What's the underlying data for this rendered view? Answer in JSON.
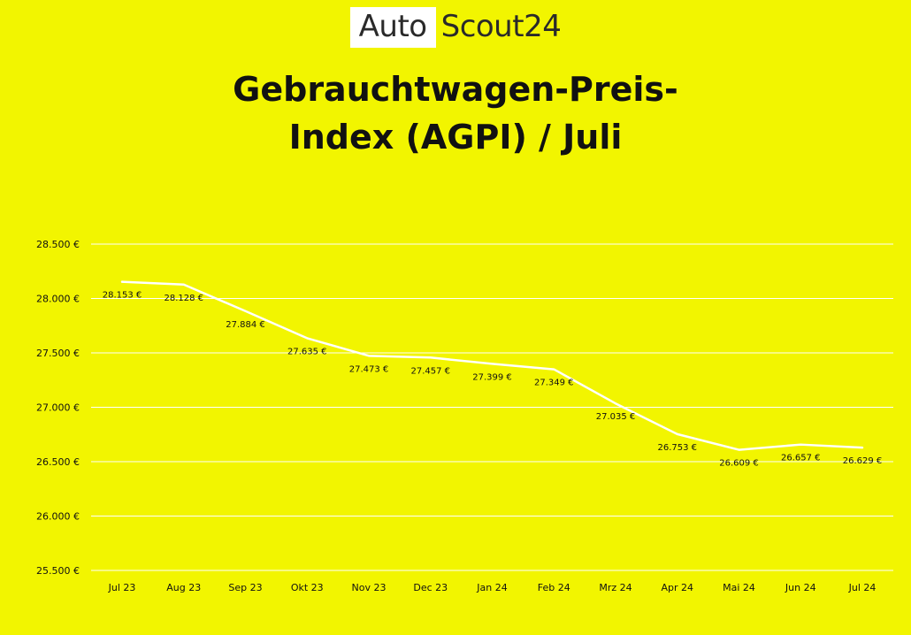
{
  "brand": {
    "part1": "Auto",
    "part2": "Scout24"
  },
  "title_line1": "Gebrauchtwagen-Preis-",
  "title_line2": "Index (AGPI) / Juli",
  "colors": {
    "background": "#f2f500",
    "line": "#ffffff",
    "grid": "#ffffff"
  },
  "chart_data": {
    "type": "line",
    "title": "Gebrauchtwagen-Preis-Index (AGPI) / Juli",
    "xlabel": "",
    "ylabel": "",
    "categories": [
      "Jul 23",
      "Aug 23",
      "Sep 23",
      "Okt 23",
      "Nov 23",
      "Dec 23",
      "Jan 24",
      "Feb 24",
      "Mrz 24",
      "Apr 24",
      "Mai 24",
      "Jun 24",
      "Jul 24"
    ],
    "series": [
      {
        "values": [
          28153,
          28128,
          27884,
          27635,
          27473,
          27457,
          27399,
          27349,
          27035,
          26753,
          26609,
          26657,
          26629
        ]
      }
    ],
    "data_labels": [
      "28.153 €",
      "28.128 €",
      "27.884 €",
      "27.635 €",
      "27.473 €",
      "27.457 €",
      "27.399 €",
      "27.349 €",
      "27.035 €",
      "26.753 €",
      "26.609 €",
      "26.657 €",
      "26.629 €"
    ],
    "y_ticks": [
      25500,
      26000,
      26500,
      27000,
      27500,
      28000,
      28500
    ],
    "y_tick_labels": [
      "25.500 €",
      "26.000 €",
      "26.500 €",
      "27.000 €",
      "27.500 €",
      "28.000 €",
      "28.500 €"
    ],
    "ylim": [
      25500,
      28500
    ],
    "grid": true,
    "legend": "none"
  }
}
